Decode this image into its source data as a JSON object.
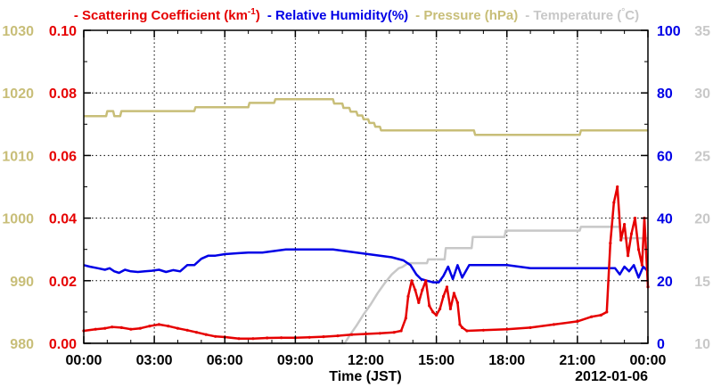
{
  "chart_data": {
    "type": "line",
    "xlabel": "Time (JST)",
    "date_label": "2012-01-06",
    "x_ticks": [
      "00:00",
      "03:00",
      "06:00",
      "09:00",
      "12:00",
      "15:00",
      "18:00",
      "21:00",
      "00:00"
    ],
    "x_range_hours": [
      0,
      24
    ],
    "grid": true,
    "legend": {
      "placement": "top",
      "items": [
        {
          "dash": "-",
          "label": "Scattering Coefficient (km",
          "sup": "-1",
          "tail": ")",
          "color": "#e60000"
        },
        {
          "dash": "-",
          "label": "Relative Humidity(%)",
          "sup": "",
          "tail": "",
          "color": "#0000e6"
        },
        {
          "dash": "-",
          "label": "Pressure (hPa)",
          "sup": "",
          "tail": "",
          "color": "#c8be78"
        },
        {
          "dash": "-",
          "label": "Temperature (",
          "sup": "°",
          "tail": "C)",
          "color": "#c8c8c8"
        }
      ]
    },
    "axes": {
      "pressure": {
        "side": "left-outer",
        "range": [
          980,
          1030
        ],
        "ticks": [
          "980",
          "990",
          "1000",
          "1010",
          "1020",
          "1030"
        ],
        "color": "#c8be78"
      },
      "scattering": {
        "side": "left-inner",
        "range": [
          0,
          0.1
        ],
        "ticks": [
          "0.00",
          "0.02",
          "0.04",
          "0.06",
          "0.08",
          "0.10"
        ],
        "color": "#e60000"
      },
      "humidity": {
        "side": "right-inner",
        "range": [
          0,
          100
        ],
        "ticks": [
          "0",
          "20",
          "40",
          "60",
          "80",
          "100"
        ],
        "color": "#0000e6"
      },
      "temperature": {
        "side": "right-outer",
        "range": [
          10,
          35
        ],
        "ticks": [
          "10",
          "15",
          "20",
          "25",
          "30",
          "35"
        ],
        "color": "#c8c8c8"
      }
    },
    "series": [
      {
        "name": "Pressure (hPa)",
        "axis": "pressure",
        "color": "#c8be78",
        "x": [
          0,
          0.95,
          1.0,
          1.25,
          1.3,
          1.55,
          1.6,
          4.7,
          4.75,
          7.0,
          7.05,
          8.1,
          8.15,
          10.6,
          10.65,
          11.0,
          11.05,
          11.3,
          11.35,
          11.6,
          11.65,
          11.85,
          11.9,
          12.1,
          12.15,
          12.35,
          12.4,
          12.6,
          12.65,
          16.6,
          16.65,
          21.1,
          21.15,
          24
        ],
        "y": [
          1016.3,
          1016.3,
          1017.1,
          1017.1,
          1016.3,
          1016.3,
          1017.1,
          1017.1,
          1017.7,
          1017.7,
          1018.4,
          1018.4,
          1019.0,
          1019.0,
          1018.3,
          1018.3,
          1017.6,
          1017.6,
          1017.0,
          1017.0,
          1016.4,
          1016.4,
          1015.8,
          1015.8,
          1015.2,
          1015.2,
          1014.6,
          1014.6,
          1014.0,
          1014.0,
          1013.3,
          1013.3,
          1014.0,
          1014.0
        ]
      },
      {
        "name": "Temperature (°C)",
        "axis": "temperature",
        "color": "#c8c8c8",
        "x": [
          0,
          11.1,
          11.3,
          11.6,
          11.9,
          12.2,
          12.5,
          12.8,
          13.1,
          13.4,
          13.55,
          13.8,
          14.6,
          14.65,
          15.0,
          15.35,
          15.4,
          16.5,
          16.55,
          17.9,
          17.95,
          21.1,
          21.15,
          22.8,
          22.85,
          24
        ],
        "y": [
          10.0,
          10.0,
          10.6,
          11.4,
          12.3,
          13.1,
          14.0,
          14.8,
          15.5,
          16.0,
          16.1,
          16.4,
          16.4,
          16.7,
          16.7,
          16.7,
          17.6,
          17.6,
          18.5,
          18.5,
          19.0,
          19.0,
          19.3,
          19.3,
          18.4,
          18.4
        ]
      },
      {
        "name": "Relative Humidity(%)",
        "axis": "humidity",
        "color": "#0000e6",
        "x": [
          0,
          0.25,
          0.6,
          0.9,
          1.1,
          1.3,
          1.5,
          1.75,
          2.0,
          2.3,
          2.6,
          2.9,
          3.2,
          3.5,
          3.8,
          4.1,
          4.4,
          4.7,
          5.0,
          5.3,
          5.6,
          6.0,
          6.6,
          7.0,
          7.6,
          8.1,
          8.6,
          9.5,
          10.6,
          11.1,
          11.6,
          12.1,
          12.6,
          13.1,
          13.6,
          13.9,
          14.15,
          14.35,
          14.6,
          14.85,
          15.1,
          15.3,
          15.5,
          15.7,
          15.9,
          16.1,
          16.4,
          17.0,
          18.0,
          19.0,
          20.0,
          21.0,
          22.0,
          22.6,
          22.8,
          23.0,
          23.2,
          23.4,
          23.6,
          23.8,
          24
        ],
        "y": [
          25.0,
          24.5,
          24.0,
          23.5,
          24.0,
          23.0,
          22.5,
          23.5,
          23.0,
          22.8,
          23.0,
          23.2,
          23.5,
          22.8,
          23.4,
          23.0,
          25.0,
          25.0,
          27.0,
          28.0,
          28.0,
          28.5,
          28.8,
          29.0,
          29.0,
          29.5,
          30.0,
          30.0,
          30.0,
          29.5,
          29.0,
          28.5,
          28.0,
          27.5,
          26.5,
          25.0,
          22.0,
          20.5,
          20.0,
          19.5,
          19.5,
          21.5,
          24.5,
          20.5,
          25.0,
          21.0,
          25.0,
          25.0,
          25.0,
          24.0,
          24.0,
          24.0,
          24.0,
          24.0,
          22.0,
          24.5,
          23.0,
          25.0,
          21.0,
          24.5,
          23.0
        ]
      },
      {
        "name": "Scattering Coefficient (km-1)",
        "axis": "scattering",
        "color": "#e60000",
        "x": [
          0,
          0.5,
          0.9,
          1.2,
          1.6,
          2.0,
          2.4,
          2.8,
          3.2,
          3.6,
          4.0,
          4.4,
          4.8,
          5.2,
          5.6,
          6.0,
          6.6,
          7.2,
          7.8,
          8.4,
          9.0,
          9.6,
          10.2,
          10.8,
          11.4,
          12.0,
          12.6,
          13.2,
          13.5,
          13.7,
          13.8,
          13.95,
          14.1,
          14.25,
          14.4,
          14.55,
          14.7,
          14.85,
          15.0,
          15.15,
          15.3,
          15.45,
          15.6,
          15.75,
          15.9,
          16.0,
          16.1,
          16.3,
          17.0,
          18.0,
          19.0,
          20.0,
          21.0,
          21.6,
          22.0,
          22.25,
          22.4,
          22.55,
          22.7,
          22.85,
          23.0,
          23.15,
          23.3,
          23.45,
          23.6,
          23.75,
          23.85,
          24
        ],
        "y": [
          0.004,
          0.0045,
          0.0048,
          0.0052,
          0.005,
          0.0045,
          0.0048,
          0.0055,
          0.006,
          0.0055,
          0.0048,
          0.0042,
          0.0035,
          0.0028,
          0.0022,
          0.002,
          0.0015,
          0.0015,
          0.0017,
          0.0018,
          0.0018,
          0.0019,
          0.0021,
          0.0024,
          0.0028,
          0.003,
          0.0032,
          0.0035,
          0.004,
          0.008,
          0.015,
          0.02,
          0.017,
          0.013,
          0.017,
          0.02,
          0.012,
          0.01,
          0.009,
          0.011,
          0.015,
          0.018,
          0.011,
          0.016,
          0.013,
          0.006,
          0.005,
          0.004,
          0.0042,
          0.0045,
          0.005,
          0.006,
          0.007,
          0.0085,
          0.009,
          0.01,
          0.032,
          0.045,
          0.05,
          0.033,
          0.038,
          0.028,
          0.035,
          0.04,
          0.03,
          0.025,
          0.04,
          0.018
        ]
      }
    ]
  }
}
